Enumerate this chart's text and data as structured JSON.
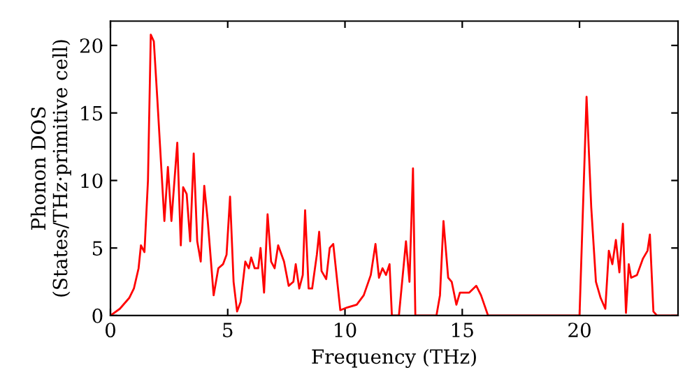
{
  "chart_data": {
    "type": "line",
    "xlabel": "Frequency (THz)",
    "ylabel": "Phonon DOS\n(States/THz·primitive cell)",
    "xlim": [
      0,
      24.2
    ],
    "ylim": [
      0,
      21.8
    ],
    "xticks": [
      0,
      5,
      10,
      15,
      20
    ],
    "yticks": [
      0,
      5,
      10,
      15,
      20
    ],
    "series": [
      {
        "color": "#ff0000",
        "x": [
          0,
          0.4,
          0.8,
          1.0,
          1.2,
          1.3,
          1.45,
          1.6,
          1.72,
          1.85,
          2.0,
          2.3,
          2.45,
          2.6,
          2.85,
          3.0,
          3.1,
          3.25,
          3.4,
          3.55,
          3.7,
          3.85,
          4.0,
          4.15,
          4.4,
          4.6,
          4.8,
          4.95,
          5.1,
          5.25,
          5.4,
          5.55,
          5.75,
          5.9,
          6.0,
          6.15,
          6.3,
          6.4,
          6.55,
          6.7,
          6.85,
          7.0,
          7.15,
          7.4,
          7.6,
          7.8,
          7.9,
          8.05,
          8.2,
          8.3,
          8.45,
          8.6,
          8.8,
          8.9,
          9.0,
          9.2,
          9.35,
          9.5,
          9.8,
          10.1,
          10.5,
          10.8,
          11.1,
          11.3,
          11.45,
          11.6,
          11.75,
          11.9,
          12.0,
          12.3,
          12.6,
          12.75,
          12.9,
          13.0,
          13.9,
          14.05,
          14.2,
          14.4,
          14.55,
          14.75,
          14.9,
          15.3,
          15.6,
          15.8,
          16.1,
          20.0,
          20.3,
          20.5,
          20.7,
          20.9,
          21.1,
          21.25,
          21.4,
          21.55,
          21.7,
          21.85,
          21.98,
          22.1,
          22.2,
          22.45,
          22.7,
          22.9,
          23.0,
          23.15,
          23.3,
          24.2
        ],
        "values": [
          0,
          0.5,
          1.3,
          2,
          3.5,
          5.2,
          4.7,
          10,
          20.8,
          20.3,
          16,
          7,
          11,
          7,
          12.8,
          5.2,
          9.5,
          9,
          5.5,
          12,
          5.5,
          4,
          9.6,
          7,
          1.5,
          3.5,
          3.8,
          4.5,
          8.8,
          2.5,
          0.3,
          1,
          4,
          3.5,
          4.3,
          3.5,
          3.5,
          5,
          1.7,
          7.5,
          4,
          3.5,
          5.2,
          4,
          2.2,
          2.5,
          3.8,
          2,
          3,
          7.8,
          2,
          2,
          4.5,
          6.2,
          3.3,
          2.7,
          5,
          5.3,
          0.4,
          0.6,
          0.8,
          1.5,
          3,
          5.3,
          2.8,
          3.5,
          3,
          3.8,
          0,
          0,
          5.5,
          2.5,
          10.9,
          0,
          0,
          1.5,
          7,
          2.8,
          2.5,
          0.8,
          1.7,
          1.7,
          2.2,
          1.5,
          0,
          0,
          16.2,
          8,
          2.5,
          1.3,
          0.5,
          4.8,
          3.8,
          5.6,
          3.2,
          6.8,
          0.2,
          3.8,
          2.8,
          3,
          4.2,
          4.8,
          6,
          0.3,
          0,
          0
        ]
      }
    ]
  }
}
